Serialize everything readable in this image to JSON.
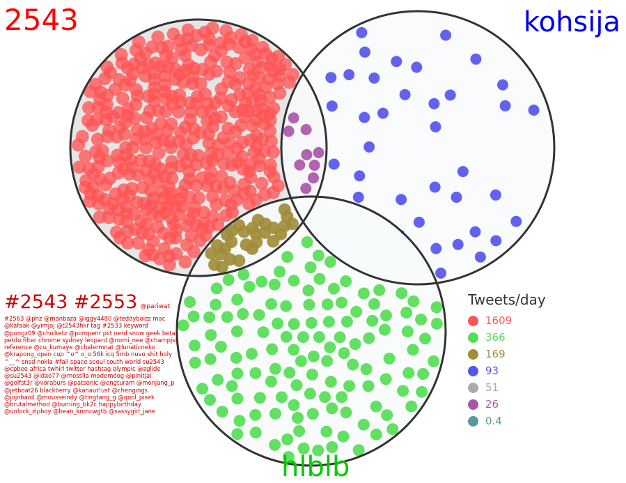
{
  "sets": {
    "a": {
      "label": "2543",
      "color": "#ff0000"
    },
    "b": {
      "label": "kohsija",
      "color": "#0000ee"
    },
    "c": {
      "label": "hlblb",
      "color": "#00cc00"
    }
  },
  "regions": [
    {
      "key": "a_only",
      "value": "1609",
      "color": "#ff5555"
    },
    {
      "key": "c_only",
      "value": "366",
      "color": "#55dd55"
    },
    {
      "key": "a_c",
      "value": "169",
      "color": "#a08c3a"
    },
    {
      "key": "b_only",
      "value": "93",
      "color": "#5555ee"
    },
    {
      "key": "a_b_c",
      "value": "51",
      "color": "#aaaaaa"
    },
    {
      "key": "a_b",
      "value": "26",
      "color": "#aa55aa"
    },
    {
      "key": "b_c",
      "value": "0.4",
      "color": "#55999f"
    }
  ],
  "legend": {
    "title": "Tweets/day"
  },
  "keywords": {
    "heading": "#2543 #2553",
    "credit": "@pariwat",
    "color": "#cc0000",
    "text": "#2563 @phz @manbaza @iggy4480 @teddyboizz mac @kafaak @yimjaj @t2543hkr tag #2533 keyword @pongz09 @choiketz @pompenr pct nerd snow geek beta petdo filter chrome sydney leopard @nomi_nee @champjss reference @cu_kumaye @chalermnat @lunaticneko @krapong_open cup ^o^ o_o 56k icq 5mb nuvo shit holy ^__^ snsd nokia #fail space seoul south world su2543 @cpbee africa twhirl twitter hashtag olympic @zglide @su2543 @idao77 @mosslla modemdog @pinitjai @golfst3r @voraburs @patsonic @engturam @monjang_p @jetboat26 blackberry @kanaut!ust @chengings @jojobaoil @mousseindy @tingtang_g @qool_pisek @brutalmethod @burning_bk2c happybirthday @unlock_zipboy @bean_knmcwgtb @sassygirl_jane"
  }
}
